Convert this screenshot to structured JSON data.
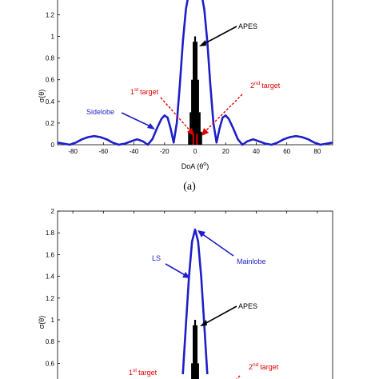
{
  "chart_data": [
    {
      "type": "line",
      "panel_caption": "(a)",
      "xlabel": "DoA (θ°)",
      "ylabel": "σ(θ)",
      "xlim": [
        -90,
        90
      ],
      "ylim": [
        0,
        1.4
      ],
      "xticks": [
        "-80",
        "-60",
        "-40",
        "-20",
        "0",
        "20",
        "40",
        "60",
        "80"
      ],
      "yticks": [
        "0",
        "0.2",
        "0.4",
        "0.6",
        "0.8",
        "1",
        "1.2"
      ],
      "series": [
        {
          "name": "LS",
          "color": "#1f1fc8",
          "x": [
            -90,
            -86,
            -82,
            -78,
            -74,
            -70,
            -66,
            -62,
            -58,
            -54,
            -50,
            -46,
            -42,
            -38,
            -34,
            -31,
            -28,
            -25,
            -22,
            -20,
            -18,
            -16,
            -14,
            -12,
            -10,
            -8,
            -6,
            -4,
            -2,
            0,
            2,
            4,
            6,
            8,
            10,
            12,
            14,
            16,
            18,
            20,
            22,
            25,
            28,
            31,
            34,
            38,
            42,
            46,
            50,
            54,
            58,
            62,
            66,
            70,
            74,
            78,
            82,
            86,
            90
          ],
          "y": [
            0.02,
            0.01,
            0.0,
            0.02,
            0.05,
            0.07,
            0.08,
            0.07,
            0.05,
            0.02,
            0.0,
            0.01,
            0.03,
            0.05,
            0.03,
            0.0,
            0.05,
            0.15,
            0.24,
            0.27,
            0.25,
            0.15,
            0.02,
            0.2,
            0.55,
            0.95,
            1.25,
            1.42,
            1.5,
            1.52,
            1.5,
            1.42,
            1.25,
            0.95,
            0.55,
            0.2,
            0.02,
            0.15,
            0.25,
            0.27,
            0.24,
            0.15,
            0.05,
            0.0,
            0.03,
            0.05,
            0.03,
            0.01,
            0.0,
            0.02,
            0.05,
            0.07,
            0.08,
            0.07,
            0.05,
            0.02,
            0.0,
            0.01,
            0.02
          ]
        },
        {
          "name": "APES",
          "color": "#000000",
          "spikes": [
            {
              "x": 0,
              "y": 1.0
            },
            {
              "x": -1,
              "y": 0.95
            },
            {
              "x": 1,
              "y": 0.95
            },
            {
              "x": -2,
              "y": 0.6
            },
            {
              "x": 2,
              "y": 0.6
            },
            {
              "x": -3,
              "y": 0.3
            },
            {
              "x": 3,
              "y": 0.3
            },
            {
              "x": -4,
              "y": 0.12
            },
            {
              "x": 4,
              "y": 0.12
            },
            {
              "x": -0.5,
              "y": 0.9
            },
            {
              "x": 0.5,
              "y": 0.9
            }
          ]
        }
      ],
      "annotations": [
        {
          "text": "APES",
          "color": "#000000",
          "x": 55,
          "y": 1.0
        },
        {
          "text": "Sidelobe",
          "color": "#1f1fc8",
          "x": -40,
          "y": 0.35
        },
        {
          "text": "1st target",
          "sup": "st",
          "color": "#e00000",
          "x": -20,
          "y": 0.47
        },
        {
          "text": "2nd target",
          "sup": "nd",
          "color": "#e00000",
          "x": 30,
          "y": 0.52
        }
      ]
    },
    {
      "type": "line",
      "xlabel": "",
      "ylabel": "σ(θ)",
      "xlim": [
        -90,
        90
      ],
      "ylim": [
        0,
        2
      ],
      "yticks": [
        "0.6",
        "0.8",
        "1",
        "1.2",
        "1.4",
        "1.6",
        "1.8",
        "2"
      ],
      "series": [
        {
          "name": "LS",
          "color": "#1f1fc8",
          "x": [
            -8,
            -6,
            -4,
            -2,
            0,
            2,
            4,
            6,
            8
          ],
          "y": [
            0.5,
            0.95,
            1.4,
            1.72,
            1.83,
            1.72,
            1.4,
            0.95,
            0.5
          ]
        },
        {
          "name": "APES",
          "color": "#000000",
          "spikes": [
            {
              "x": 0,
              "y": 1.0
            },
            {
              "x": -1,
              "y": 0.95
            },
            {
              "x": 1,
              "y": 0.95
            },
            {
              "x": -2,
              "y": 0.6
            },
            {
              "x": 2,
              "y": 0.6
            }
          ]
        }
      ],
      "annotations": [
        {
          "text": "LS",
          "color": "#1f1fc8"
        },
        {
          "text": "Mainlobe",
          "color": "#1f1fc8"
        },
        {
          "text": "APES",
          "color": "#000000"
        },
        {
          "text": "1st target",
          "color": "#e00000"
        },
        {
          "text": "2nd target",
          "color": "#e00000"
        }
      ]
    }
  ],
  "labels": {
    "caption_a": "(a)",
    "xlabel_a": "DoA (θ",
    "xlabel_a_sup": "o",
    "xlabel_a_end": ")",
    "ylabel": "σ(θ)",
    "apes": "APES",
    "sidelobe": "Sidelobe",
    "ls": "LS",
    "mainlobe": "Mainlobe",
    "first_num": "1",
    "first_sup": "st",
    "second_num": "2",
    "second_sup": "nd",
    "target": "target"
  }
}
